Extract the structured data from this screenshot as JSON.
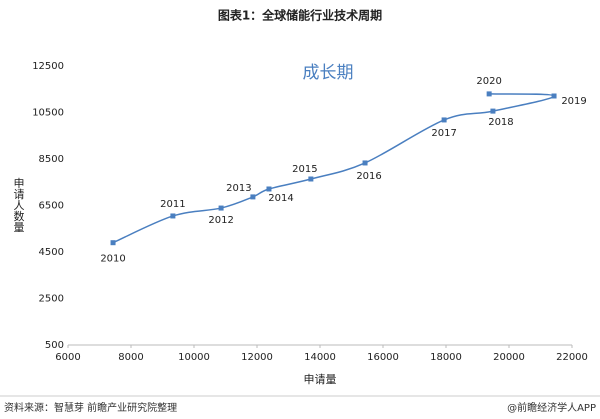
{
  "chart_data": {
    "type": "line",
    "title": "图表1：全球储能行业技术周期",
    "annotation": "成长期",
    "x_label": "申请量",
    "y_label": "申请人数量",
    "source": "资料来源：智慧芽 前瞻产业研究院整理",
    "credit": "@前瞻经济学人APP",
    "series": [
      {
        "color": "#4a7fc0",
        "labels": [
          "2010",
          "2011",
          "2012",
          "2013",
          "2014",
          "2015",
          "2016",
          "2017",
          "2018",
          "2019",
          "2020"
        ],
        "x": [
          7430,
          9330,
          10860,
          11870,
          12380,
          13710,
          15430,
          17940,
          19490,
          21430,
          19370
        ],
        "values": [
          4900,
          6050,
          6390,
          6870,
          7210,
          7640,
          8330,
          10180,
          10560,
          11210,
          11300
        ]
      }
    ],
    "xlim": [
      6000,
      22000
    ],
    "xticks": [
      6000,
      8000,
      10000,
      12000,
      14000,
      16000,
      18000,
      20000,
      22000
    ],
    "ylim": [
      500,
      12500
    ],
    "yticks": [
      500,
      2500,
      4500,
      6500,
      8500,
      10500,
      12500
    ]
  }
}
